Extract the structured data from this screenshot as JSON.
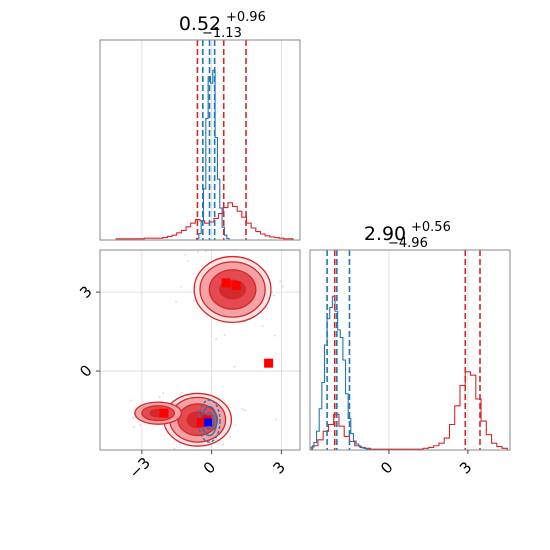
{
  "chart_data": [
    {
      "panel": "marginal-param-1",
      "type": "histogram",
      "title": {
        "value": "0.52",
        "plus": "+0.96",
        "minus": "−1.13"
      },
      "xlim": [
        -4.8,
        3.8
      ],
      "series": [
        {
          "name": "",
          "color": "#d62728",
          "x": [
            -4.2,
            -4.0,
            -3.8,
            -3.6,
            -3.4,
            -3.2,
            -3.0,
            -2.8,
            -2.6,
            -2.4,
            -2.2,
            -2.0,
            -1.8,
            -1.6,
            -1.4,
            -1.2,
            -1.0,
            -0.8,
            -0.6,
            -0.4,
            -0.2,
            0.0,
            0.2,
            0.4,
            0.6,
            0.8,
            1.0,
            1.2,
            1.4,
            1.6,
            1.8,
            2.0,
            2.2,
            2.4,
            2.6,
            2.8,
            3.0,
            3.2,
            3.4,
            3.6
          ],
          "density": [
            0,
            0.02,
            0.02,
            0.02,
            0.02,
            0.02,
            0.02,
            0.03,
            0.03,
            0.03,
            0.03,
            0.04,
            0.06,
            0.08,
            0.12,
            0.16,
            0.22,
            0.28,
            0.34,
            0.32,
            0.28,
            0.3,
            0.36,
            0.44,
            0.54,
            0.62,
            0.56,
            0.48,
            0.38,
            0.28,
            0.2,
            0.14,
            0.1,
            0.07,
            0.05,
            0.04,
            0.03,
            0.02,
            0.02,
            0
          ]
        },
        {
          "name": "",
          "color": "#1f77b4",
          "x": [
            -0.7,
            -0.6,
            -0.5,
            -0.4,
            -0.3,
            -0.2,
            -0.1,
            0.0,
            0.1,
            0.2,
            0.3,
            0.4,
            0.5,
            0.6,
            0.7,
            0.8
          ],
          "density": [
            0,
            0.05,
            0.2,
            0.6,
            1.6,
            3.8,
            5.1,
            4.9,
            5.3,
            3.2,
            1.9,
            1.0,
            0.4,
            0.15,
            0.05,
            0
          ]
        }
      ],
      "quantile_lines": [
        {
          "color": "#d62728",
          "x": [
            -0.61,
            0.52,
            1.48
          ]
        },
        {
          "color": "#1f77b4",
          "x": [
            -0.38,
            -0.09,
            0.13
          ]
        }
      ]
    },
    {
      "panel": "joint-param-1-vs-param-2",
      "type": "contour-scatter",
      "xlim": [
        -4.8,
        3.8
      ],
      "ylim": [
        -3.0,
        4.6
      ],
      "xticks": [
        "−3",
        "0",
        "3"
      ],
      "yticks": [
        "0",
        "3"
      ],
      "red_modes": [
        {
          "cx": 0.9,
          "cy": 3.1,
          "rx": [
            0.55,
            1.0,
            1.4,
            1.65
          ],
          "ry": [
            0.35,
            0.75,
            1.05,
            1.25
          ]
        },
        {
          "cx": -0.6,
          "cy": -1.85,
          "rx": [
            0.45,
            0.85,
            1.2,
            1.45
          ],
          "ry": [
            0.3,
            0.6,
            0.85,
            1.0
          ]
        },
        {
          "cx": -2.3,
          "cy": -1.6,
          "rx": [
            0.35,
            0.7,
            1.0
          ],
          "ry": [
            0.14,
            0.28,
            0.42
          ]
        }
      ],
      "blue_mode": {
        "cx": -0.1,
        "cy": -1.9,
        "rx": [
          0.2,
          0.32,
          0.46
        ],
        "ry": [
          0.3,
          0.55,
          0.8
        ]
      },
      "red_points": [
        [
          0.62,
          3.35
        ],
        [
          1.05,
          3.25
        ],
        [
          2.45,
          0.3
        ],
        [
          -2.05,
          -1.6
        ],
        [
          -0.45,
          -1.95
        ],
        [
          -0.2,
          -1.85
        ]
      ],
      "blue_points": [
        [
          -0.15,
          -1.95
        ]
      ]
    },
    {
      "panel": "marginal-param-2",
      "type": "histogram",
      "title": {
        "value": "2.90",
        "plus": "+0.56",
        "minus": "−4.96"
      },
      "xlim": [
        -3.0,
        4.6
      ],
      "xticks": [
        "0",
        "3"
      ],
      "series": [
        {
          "name": "",
          "color": "#d62728",
          "x": [
            -2.8,
            -2.6,
            -2.4,
            -2.2,
            -2.0,
            -1.8,
            -1.6,
            -1.4,
            -1.2,
            -1.0,
            -0.8,
            -0.6,
            -0.4,
            -0.2,
            0.0,
            0.2,
            0.4,
            0.6,
            0.8,
            1.0,
            1.2,
            1.4,
            1.6,
            1.8,
            2.0,
            2.2,
            2.4,
            2.6,
            2.8,
            3.0,
            3.2,
            3.4,
            3.6,
            3.8,
            4.0,
            4.2,
            4.4
          ],
          "density": [
            0.05,
            0.12,
            0.22,
            0.3,
            0.42,
            0.28,
            0.16,
            0.1,
            0.05,
            0.03,
            0.02,
            0.01,
            0.01,
            0.01,
            0.01,
            0.01,
            0.01,
            0.01,
            0.01,
            0.01,
            0.01,
            0.02,
            0.03,
            0.05,
            0.08,
            0.14,
            0.3,
            0.52,
            0.76,
            0.92,
            0.88,
            0.6,
            0.34,
            0.18,
            0.08,
            0.04,
            0.02
          ]
        },
        {
          "name": "",
          "color": "#1f77b4",
          "x": [
            -2.9,
            -2.8,
            -2.7,
            -2.6,
            -2.5,
            -2.4,
            -2.3,
            -2.2,
            -2.1,
            -2.0,
            -1.9,
            -1.8,
            -1.7,
            -1.6,
            -1.5,
            -1.4,
            -1.3,
            -1.2,
            -1.1,
            -1.0,
            -0.9,
            -0.8,
            -0.7
          ],
          "density": [
            0.04,
            0.1,
            0.25,
            0.55,
            0.9,
            1.4,
            1.75,
            1.9,
            2.05,
            1.85,
            1.6,
            1.5,
            1.2,
            0.75,
            0.42,
            0.22,
            0.12,
            0.08,
            0.05,
            0.03,
            0.02,
            0.01,
            0
          ]
        }
      ],
      "quantile_lines": [
        {
          "color": "#d62728",
          "x": [
            -2.06,
            2.9,
            3.46
          ]
        },
        {
          "color": "#1f77b4",
          "x": [
            -2.35,
            -1.98,
            -1.5
          ]
        }
      ]
    }
  ]
}
